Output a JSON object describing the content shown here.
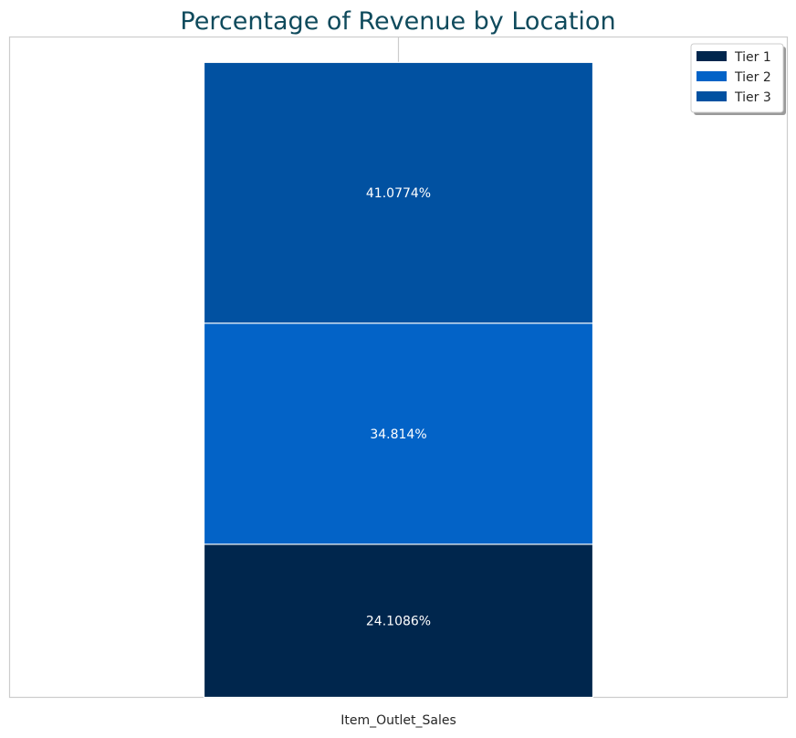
{
  "chart_data": {
    "type": "bar",
    "stacked": true,
    "title": "Percentage of Revenue by Location",
    "xlabel": "",
    "ylabel": "",
    "categories": [
      "Item_Outlet_Sales"
    ],
    "series": [
      {
        "name": "Tier 1",
        "values": [
          24.1086
        ],
        "label": "24.1086%",
        "color": "#00264d"
      },
      {
        "name": "Tier 2",
        "values": [
          34.814
        ],
        "label": "34.814%",
        "color": "#0363c7"
      },
      {
        "name": "Tier 3",
        "values": [
          41.0774
        ],
        "label": "41.0774%",
        "color": "#0151a1"
      }
    ],
    "ylim": [
      0,
      104.0
    ],
    "grid": true,
    "legend_position": "top-right"
  }
}
